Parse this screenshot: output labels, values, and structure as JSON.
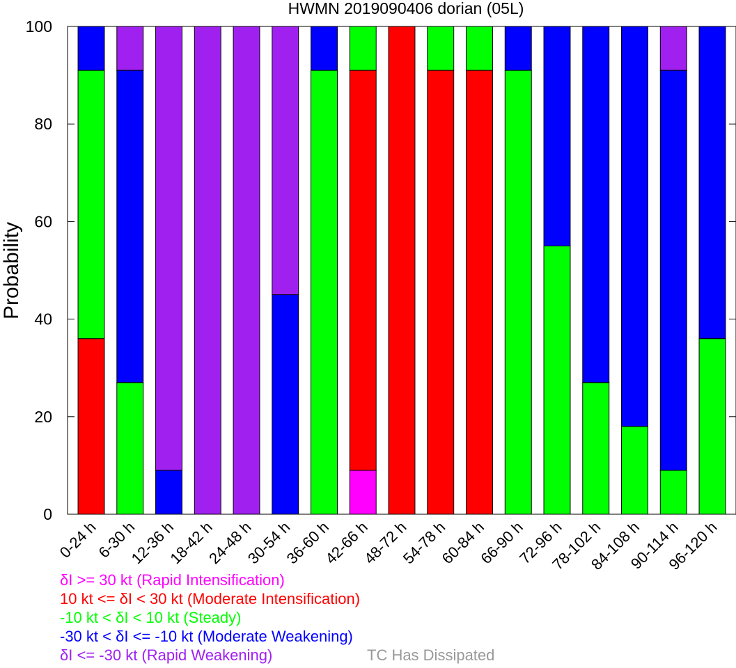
{
  "chart_data": {
    "type": "bar",
    "stacked": true,
    "title": "HWMN 2019090406 dorian (05L)",
    "xlabel": "",
    "ylabel": "Probability",
    "ylim": [
      0,
      100
    ],
    "yticks": [
      0,
      20,
      40,
      60,
      80,
      100
    ],
    "grid": false,
    "categories": [
      "0-24 h",
      "6-30 h",
      "12-36 h",
      "18-42 h",
      "24-48 h",
      "30-54 h",
      "36-60 h",
      "42-66 h",
      "48-72 h",
      "54-78 h",
      "60-84 h",
      "66-90 h",
      "72-96 h",
      "78-102 h",
      "84-108 h",
      "90-114 h",
      "96-120 h"
    ],
    "series": [
      {
        "key": "ri",
        "color": "#ff00ff",
        "values": [
          0,
          0,
          0,
          0,
          0,
          0,
          0,
          9,
          0,
          0,
          0,
          0,
          0,
          0,
          0,
          0,
          0
        ]
      },
      {
        "key": "mi",
        "color": "#ff0000",
        "values": [
          36,
          0,
          0,
          0,
          0,
          0,
          0,
          82,
          100,
          91,
          91,
          0,
          0,
          0,
          0,
          0,
          0
        ]
      },
      {
        "key": "st",
        "color": "#00ff00",
        "values": [
          55,
          27,
          0,
          0,
          0,
          0,
          91,
          9,
          0,
          9,
          9,
          91,
          55,
          27,
          18,
          9,
          36
        ]
      },
      {
        "key": "mw",
        "color": "#0000ff",
        "values": [
          9,
          64,
          9,
          0,
          0,
          45,
          9,
          0,
          0,
          0,
          0,
          9,
          45,
          73,
          82,
          82,
          64
        ]
      },
      {
        "key": "rw",
        "color": "#a020f0",
        "values": [
          0,
          9,
          91,
          100,
          100,
          55,
          0,
          0,
          0,
          0,
          0,
          0,
          0,
          0,
          0,
          9,
          0
        ]
      }
    ],
    "legend": {
      "placement": "bottom-left",
      "items": [
        {
          "key": "ri",
          "color": "#ff00ff",
          "label": "δI >= 30 kt (Rapid Intensification)"
        },
        {
          "key": "mi",
          "color": "#ff0000",
          "label": "10 kt <= δI < 30 kt (Moderate Intensification)"
        },
        {
          "key": "st",
          "color": "#00ff00",
          "label": "-10 kt < δI < 10 kt (Steady)"
        },
        {
          "key": "mw",
          "color": "#0000ff",
          "label": "-30 kt < δI <= -10 kt (Moderate Weakening)"
        },
        {
          "key": "rw",
          "color": "#a020f0",
          "label": "δI <= -30 kt (Rapid Weakening)"
        }
      ],
      "dissipated": {
        "color": "#999999",
        "label": "TC Has Dissipated"
      }
    }
  }
}
